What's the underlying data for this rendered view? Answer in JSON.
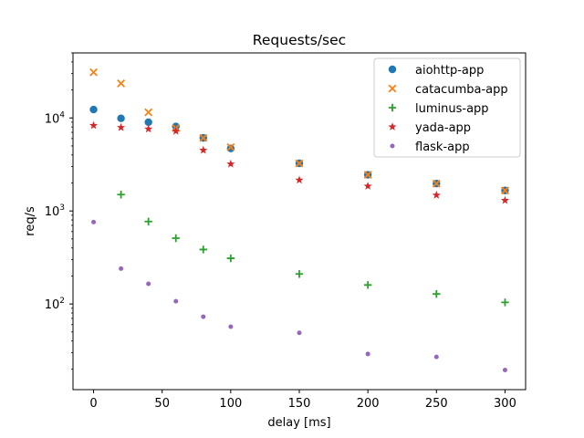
{
  "chart_data": {
    "type": "scatter",
    "title": "Requests/sec",
    "xlabel": "delay [ms]",
    "ylabel": "req/s",
    "xlim": [
      -15,
      315
    ],
    "ylim": [
      12,
      50000
    ],
    "yscale": "log",
    "x_ticks": [
      0,
      50,
      100,
      150,
      200,
      250,
      300
    ],
    "y_ticks": [
      {
        "value": 100,
        "base": "10",
        "exp": "2"
      },
      {
        "value": 1000,
        "base": "10",
        "exp": "3"
      },
      {
        "value": 10000,
        "base": "10",
        "exp": "4"
      }
    ],
    "grid": false,
    "legend_position": "upper right",
    "series": [
      {
        "name": "aiohttp-app",
        "color": "#1f77b4",
        "marker": "circle",
        "x": [
          0,
          20,
          40,
          60,
          80,
          100,
          150,
          200,
          250,
          300
        ],
        "y": [
          12300,
          9900,
          9000,
          8100,
          6100,
          4700,
          3250,
          2450,
          1970,
          1660
        ]
      },
      {
        "name": "catacumba-app",
        "color": "#ff7f0e",
        "marker": "x",
        "x": [
          0,
          20,
          40,
          60,
          80,
          100,
          150,
          200,
          250,
          300
        ],
        "y": [
          31000,
          23500,
          11500,
          7800,
          6100,
          4850,
          3250,
          2450,
          1970,
          1660
        ]
      },
      {
        "name": "luminus-app",
        "color": "#2ca02c",
        "marker": "plus",
        "x": [
          20,
          40,
          60,
          80,
          100,
          150,
          200,
          250,
          300
        ],
        "y": [
          1500,
          770,
          510,
          385,
          310,
          210,
          160,
          128,
          104
        ]
      },
      {
        "name": "yada-app",
        "color": "#d62728",
        "marker": "star",
        "x": [
          0,
          20,
          40,
          60,
          80,
          100,
          150,
          200,
          250,
          300
        ],
        "y": [
          8300,
          7900,
          7600,
          7200,
          4500,
          3200,
          2150,
          1850,
          1480,
          1300
        ]
      },
      {
        "name": "flask-app",
        "color": "#9467bd",
        "marker": "dot",
        "x": [
          0,
          20,
          40,
          60,
          80,
          100,
          150,
          200,
          250,
          300
        ],
        "y": [
          760,
          240,
          165,
          107,
          73,
          57,
          49,
          29,
          27,
          19.5
        ]
      }
    ]
  }
}
